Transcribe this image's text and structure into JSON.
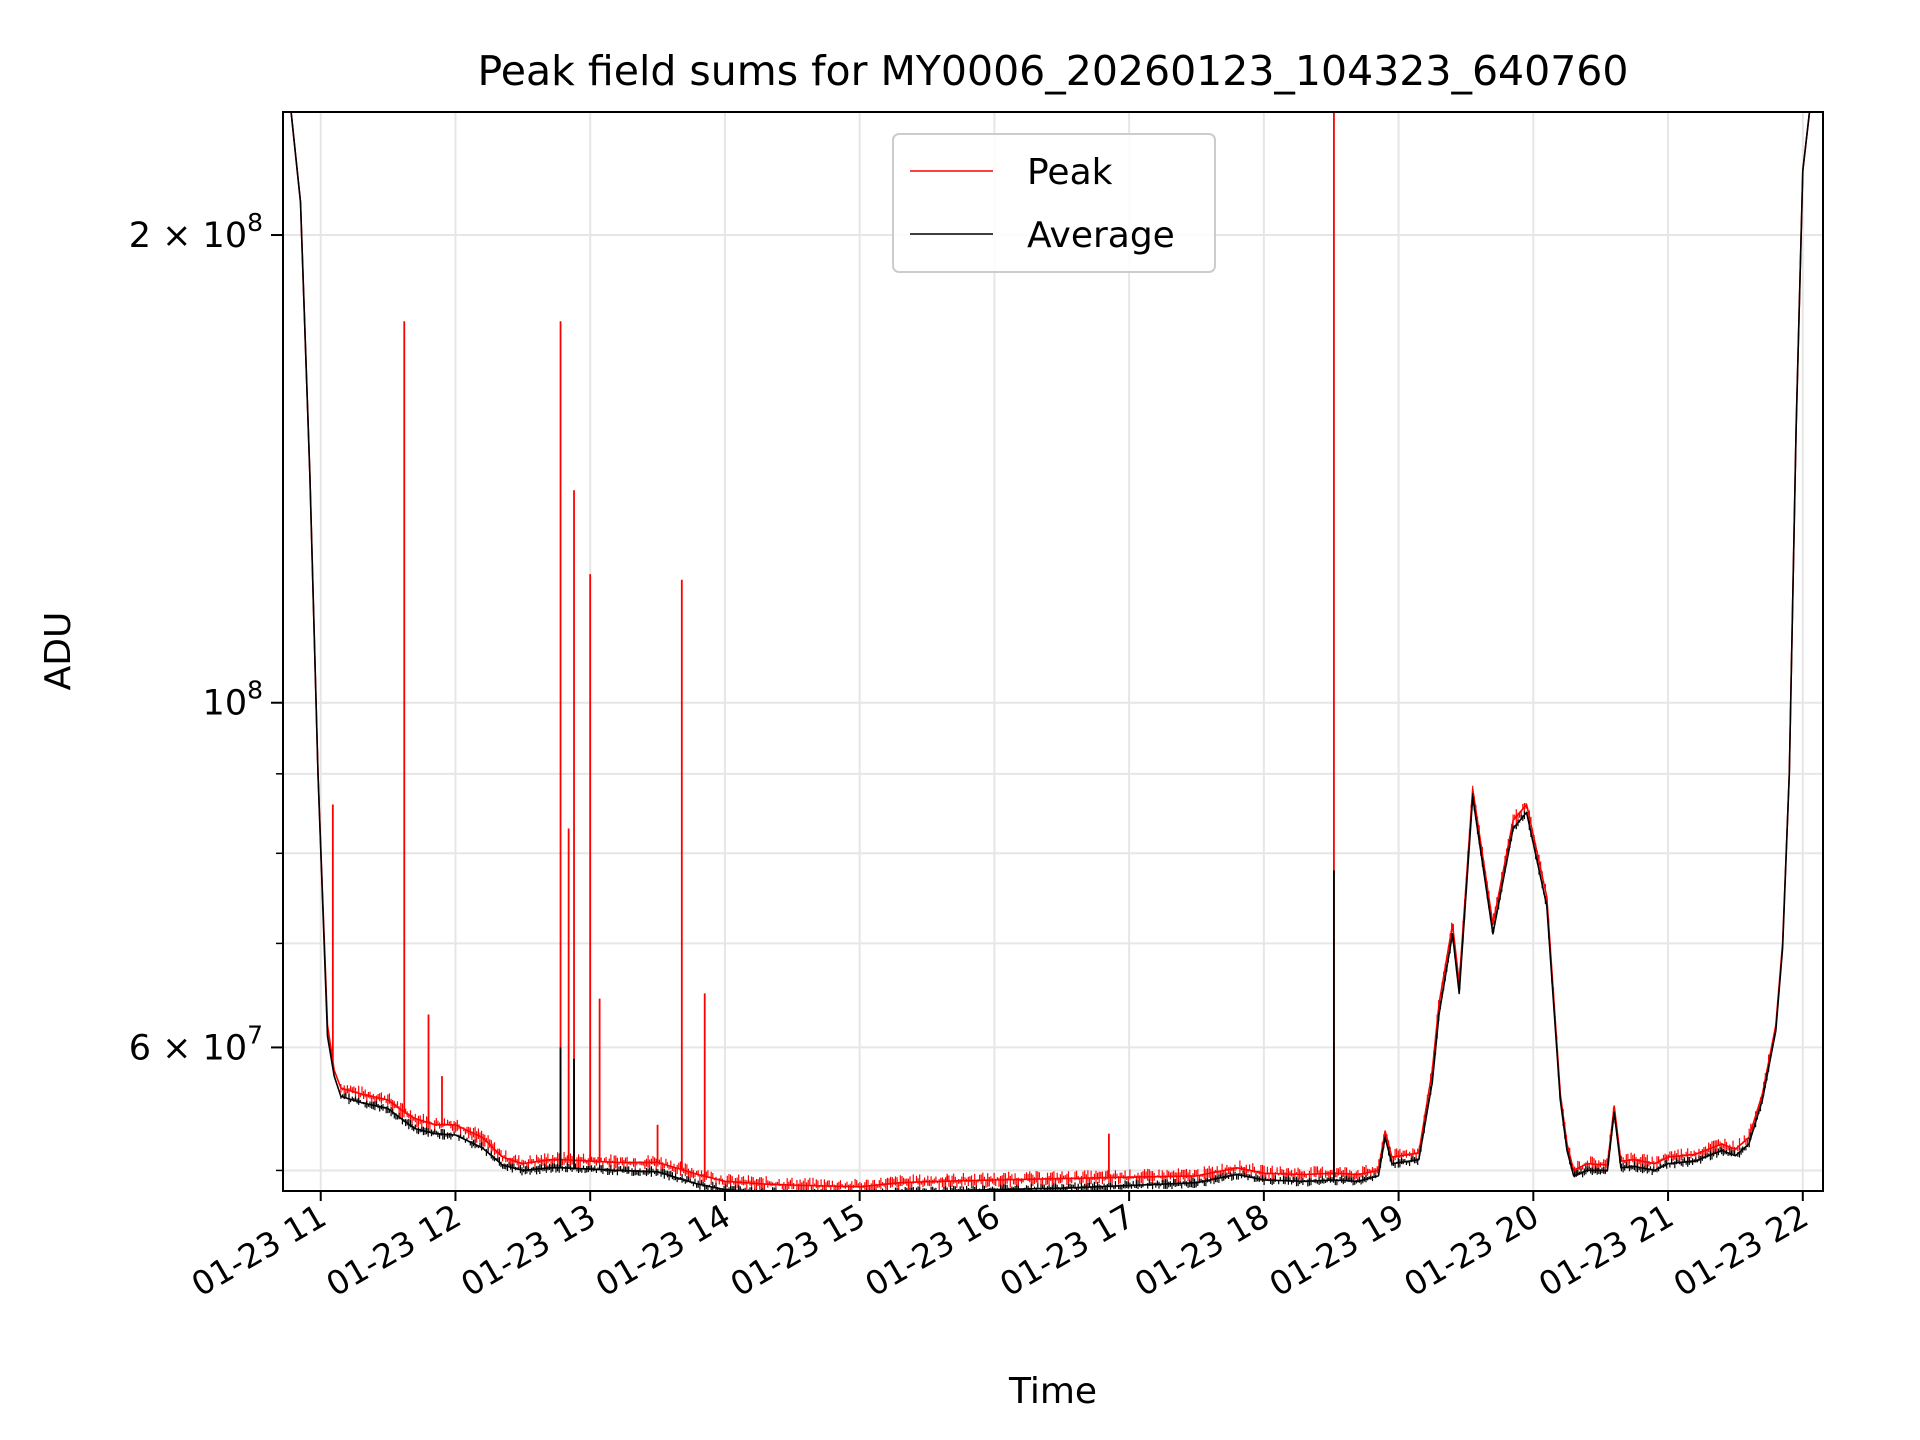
{
  "chart_data": {
    "type": "line",
    "title": "Peak field sums for MY0006_20260123_104323_640760",
    "xlabel": "Time",
    "ylabel": "ADU",
    "x_unit": "hours since 01-23 00:00",
    "xlim": [
      10.72,
      22.15
    ],
    "ylim": [
      48500000,
      240000000
    ],
    "yscale": "log",
    "grid": true,
    "legend_position": "top-center",
    "x_ticks": [
      {
        "value": 11,
        "label": "01-23 11"
      },
      {
        "value": 12,
        "label": "01-23 12"
      },
      {
        "value": 13,
        "label": "01-23 13"
      },
      {
        "value": 14,
        "label": "01-23 14"
      },
      {
        "value": 15,
        "label": "01-23 15"
      },
      {
        "value": 16,
        "label": "01-23 16"
      },
      {
        "value": 17,
        "label": "01-23 17"
      },
      {
        "value": 18,
        "label": "01-23 18"
      },
      {
        "value": 19,
        "label": "01-23 19"
      },
      {
        "value": 20,
        "label": "01-23 20"
      },
      {
        "value": 21,
        "label": "01-23 21"
      },
      {
        "value": 22,
        "label": "01-23 22"
      }
    ],
    "y_ticks": [
      {
        "value": 200000000,
        "mantissa": "2",
        "times": "×",
        "base": "10",
        "exp": "8"
      },
      {
        "value": 100000000,
        "mantissa": "",
        "times": "",
        "base": "10",
        "exp": "8"
      },
      {
        "value": 60000000,
        "mantissa": "6",
        "times": "×",
        "base": "10",
        "exp": "7"
      }
    ],
    "y_minor_ticks": [
      50000000,
      70000000,
      80000000,
      90000000
    ],
    "series": [
      {
        "name": "Peak",
        "color": "#ff0000",
        "x": [
          10.72,
          10.78,
          10.85,
          10.92,
          10.98,
          11.05,
          11.1,
          11.15,
          11.3,
          11.5,
          11.62,
          11.7,
          11.85,
          12.0,
          12.2,
          12.35,
          12.5,
          12.7,
          12.8,
          13.0,
          13.2,
          13.5,
          13.8,
          14.0,
          14.3,
          14.6,
          15.0,
          15.3,
          15.6,
          16.0,
          16.5,
          17.0,
          17.5,
          17.8,
          18.0,
          18.3,
          18.52,
          18.7,
          18.85,
          18.9,
          18.95,
          19.15,
          19.25,
          19.3,
          19.4,
          19.45,
          19.55,
          19.7,
          19.85,
          19.95,
          20.1,
          20.2,
          20.25,
          20.3,
          20.4,
          20.55,
          20.6,
          20.65,
          20.75,
          20.9,
          21.0,
          21.2,
          21.4,
          21.5,
          21.6,
          21.7,
          21.8,
          21.85,
          21.9,
          21.95,
          22.0,
          22.05,
          22.15
        ],
        "y": [
          240000000,
          240000000,
          210000000,
          140000000,
          90000000,
          62000000,
          58000000,
          56500000,
          56000000,
          55500000,
          54500000,
          54000000,
          53500000,
          53500000,
          52500000,
          51000000,
          50500000,
          50800000,
          50800000,
          50700000,
          50600000,
          50600000,
          49700000,
          49200000,
          49000000,
          48900000,
          48800000,
          49100000,
          49200000,
          49300000,
          49400000,
          49500000,
          49600000,
          50200000,
          49800000,
          49700000,
          49800000,
          49700000,
          50000000,
          53000000,
          51000000,
          51300000,
          58000000,
          64000000,
          72000000,
          66000000,
          88000000,
          72000000,
          84000000,
          86000000,
          75000000,
          56000000,
          52000000,
          50000000,
          50500000,
          50400000,
          55000000,
          50700000,
          50800000,
          50500000,
          51000000,
          51200000,
          52000000,
          51600000,
          52500000,
          56000000,
          62000000,
          70000000,
          90000000,
          150000000,
          220000000,
          240000000,
          240000000
        ],
        "spikes": [
          {
            "x": 11.09,
            "y": 86000000
          },
          {
            "x": 11.62,
            "y": 176000000
          },
          {
            "x": 11.8,
            "y": 63000000
          },
          {
            "x": 11.9,
            "y": 57500000
          },
          {
            "x": 12.78,
            "y": 176000000
          },
          {
            "x": 12.88,
            "y": 137000000
          },
          {
            "x": 12.84,
            "y": 83000000
          },
          {
            "x": 13.0,
            "y": 121000000
          },
          {
            "x": 13.07,
            "y": 64500000
          },
          {
            "x": 13.5,
            "y": 53500000
          },
          {
            "x": 13.68,
            "y": 120000000
          },
          {
            "x": 13.85,
            "y": 65000000
          },
          {
            "x": 15.65,
            "y": 49600000
          },
          {
            "x": 16.2,
            "y": 49200000
          },
          {
            "x": 16.85,
            "y": 52800000
          },
          {
            "x": 18.52,
            "y": 240000000
          }
        ]
      },
      {
        "name": "Average",
        "color": "#000000",
        "x": [
          10.72,
          10.78,
          10.85,
          10.92,
          10.98,
          11.05,
          11.1,
          11.15,
          11.3,
          11.5,
          11.62,
          11.7,
          11.85,
          12.0,
          12.2,
          12.35,
          12.5,
          12.7,
          12.8,
          13.0,
          13.2,
          13.5,
          13.8,
          14.0,
          14.3,
          14.6,
          15.0,
          15.3,
          15.6,
          16.0,
          16.5,
          17.0,
          17.5,
          17.8,
          18.0,
          18.3,
          18.52,
          18.7,
          18.85,
          18.9,
          18.95,
          19.15,
          19.25,
          19.3,
          19.4,
          19.45,
          19.55,
          19.7,
          19.85,
          19.95,
          20.1,
          20.2,
          20.25,
          20.3,
          20.4,
          20.55,
          20.6,
          20.65,
          20.75,
          20.9,
          21.0,
          21.2,
          21.4,
          21.5,
          21.6,
          21.7,
          21.8,
          21.85,
          21.9,
          21.95,
          22.0,
          22.05,
          22.15
        ],
        "y": [
          240000000,
          240000000,
          210000000,
          140000000,
          90000000,
          61000000,
          57500000,
          55800000,
          55300000,
          54800000,
          53800000,
          53200000,
          52800000,
          52700000,
          51700000,
          50400000,
          50000000,
          50200000,
          50200000,
          50100000,
          50000000,
          49900000,
          49000000,
          48600000,
          48400000,
          48300000,
          48200000,
          48400000,
          48500000,
          48600000,
          48700000,
          48900000,
          49100000,
          49700000,
          49300000,
          49200000,
          49300000,
          49200000,
          49600000,
          52500000,
          50500000,
          50800000,
          57000000,
          63000000,
          71000000,
          65000000,
          87000000,
          71000000,
          83000000,
          85000000,
          74000000,
          55500000,
          51500000,
          49600000,
          50000000,
          50000000,
          54500000,
          50200000,
          50300000,
          50000000,
          50500000,
          50700000,
          51500000,
          51100000,
          52000000,
          55500000,
          61500000,
          69500000,
          90000000,
          150000000,
          220000000,
          240000000,
          240000000
        ],
        "spikes": [
          {
            "x": 12.78,
            "y": 60000000
          },
          {
            "x": 12.88,
            "y": 59000000
          },
          {
            "x": 18.52,
            "y": 78000000
          }
        ]
      }
    ]
  }
}
